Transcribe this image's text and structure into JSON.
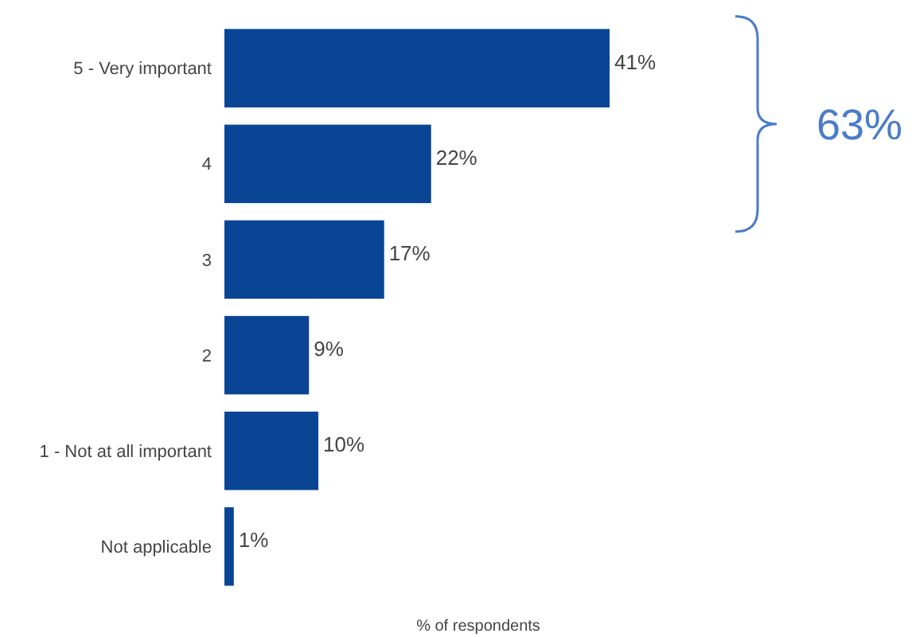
{
  "chart_data": {
    "type": "bar",
    "orientation": "horizontal",
    "xlabel": "% of respondents",
    "categories": [
      "5 - Very important",
      "4",
      "3",
      "2",
      "1 - Not at all important",
      "Not applicable"
    ],
    "values": [
      41,
      22,
      17,
      9,
      10,
      1
    ],
    "color": "#0a4595",
    "data_labels": true,
    "value_labels": [
      "41%",
      "22%",
      "17%",
      "9%",
      "10%",
      "1%"
    ],
    "annotations": [
      "63%"
    ]
  }
}
